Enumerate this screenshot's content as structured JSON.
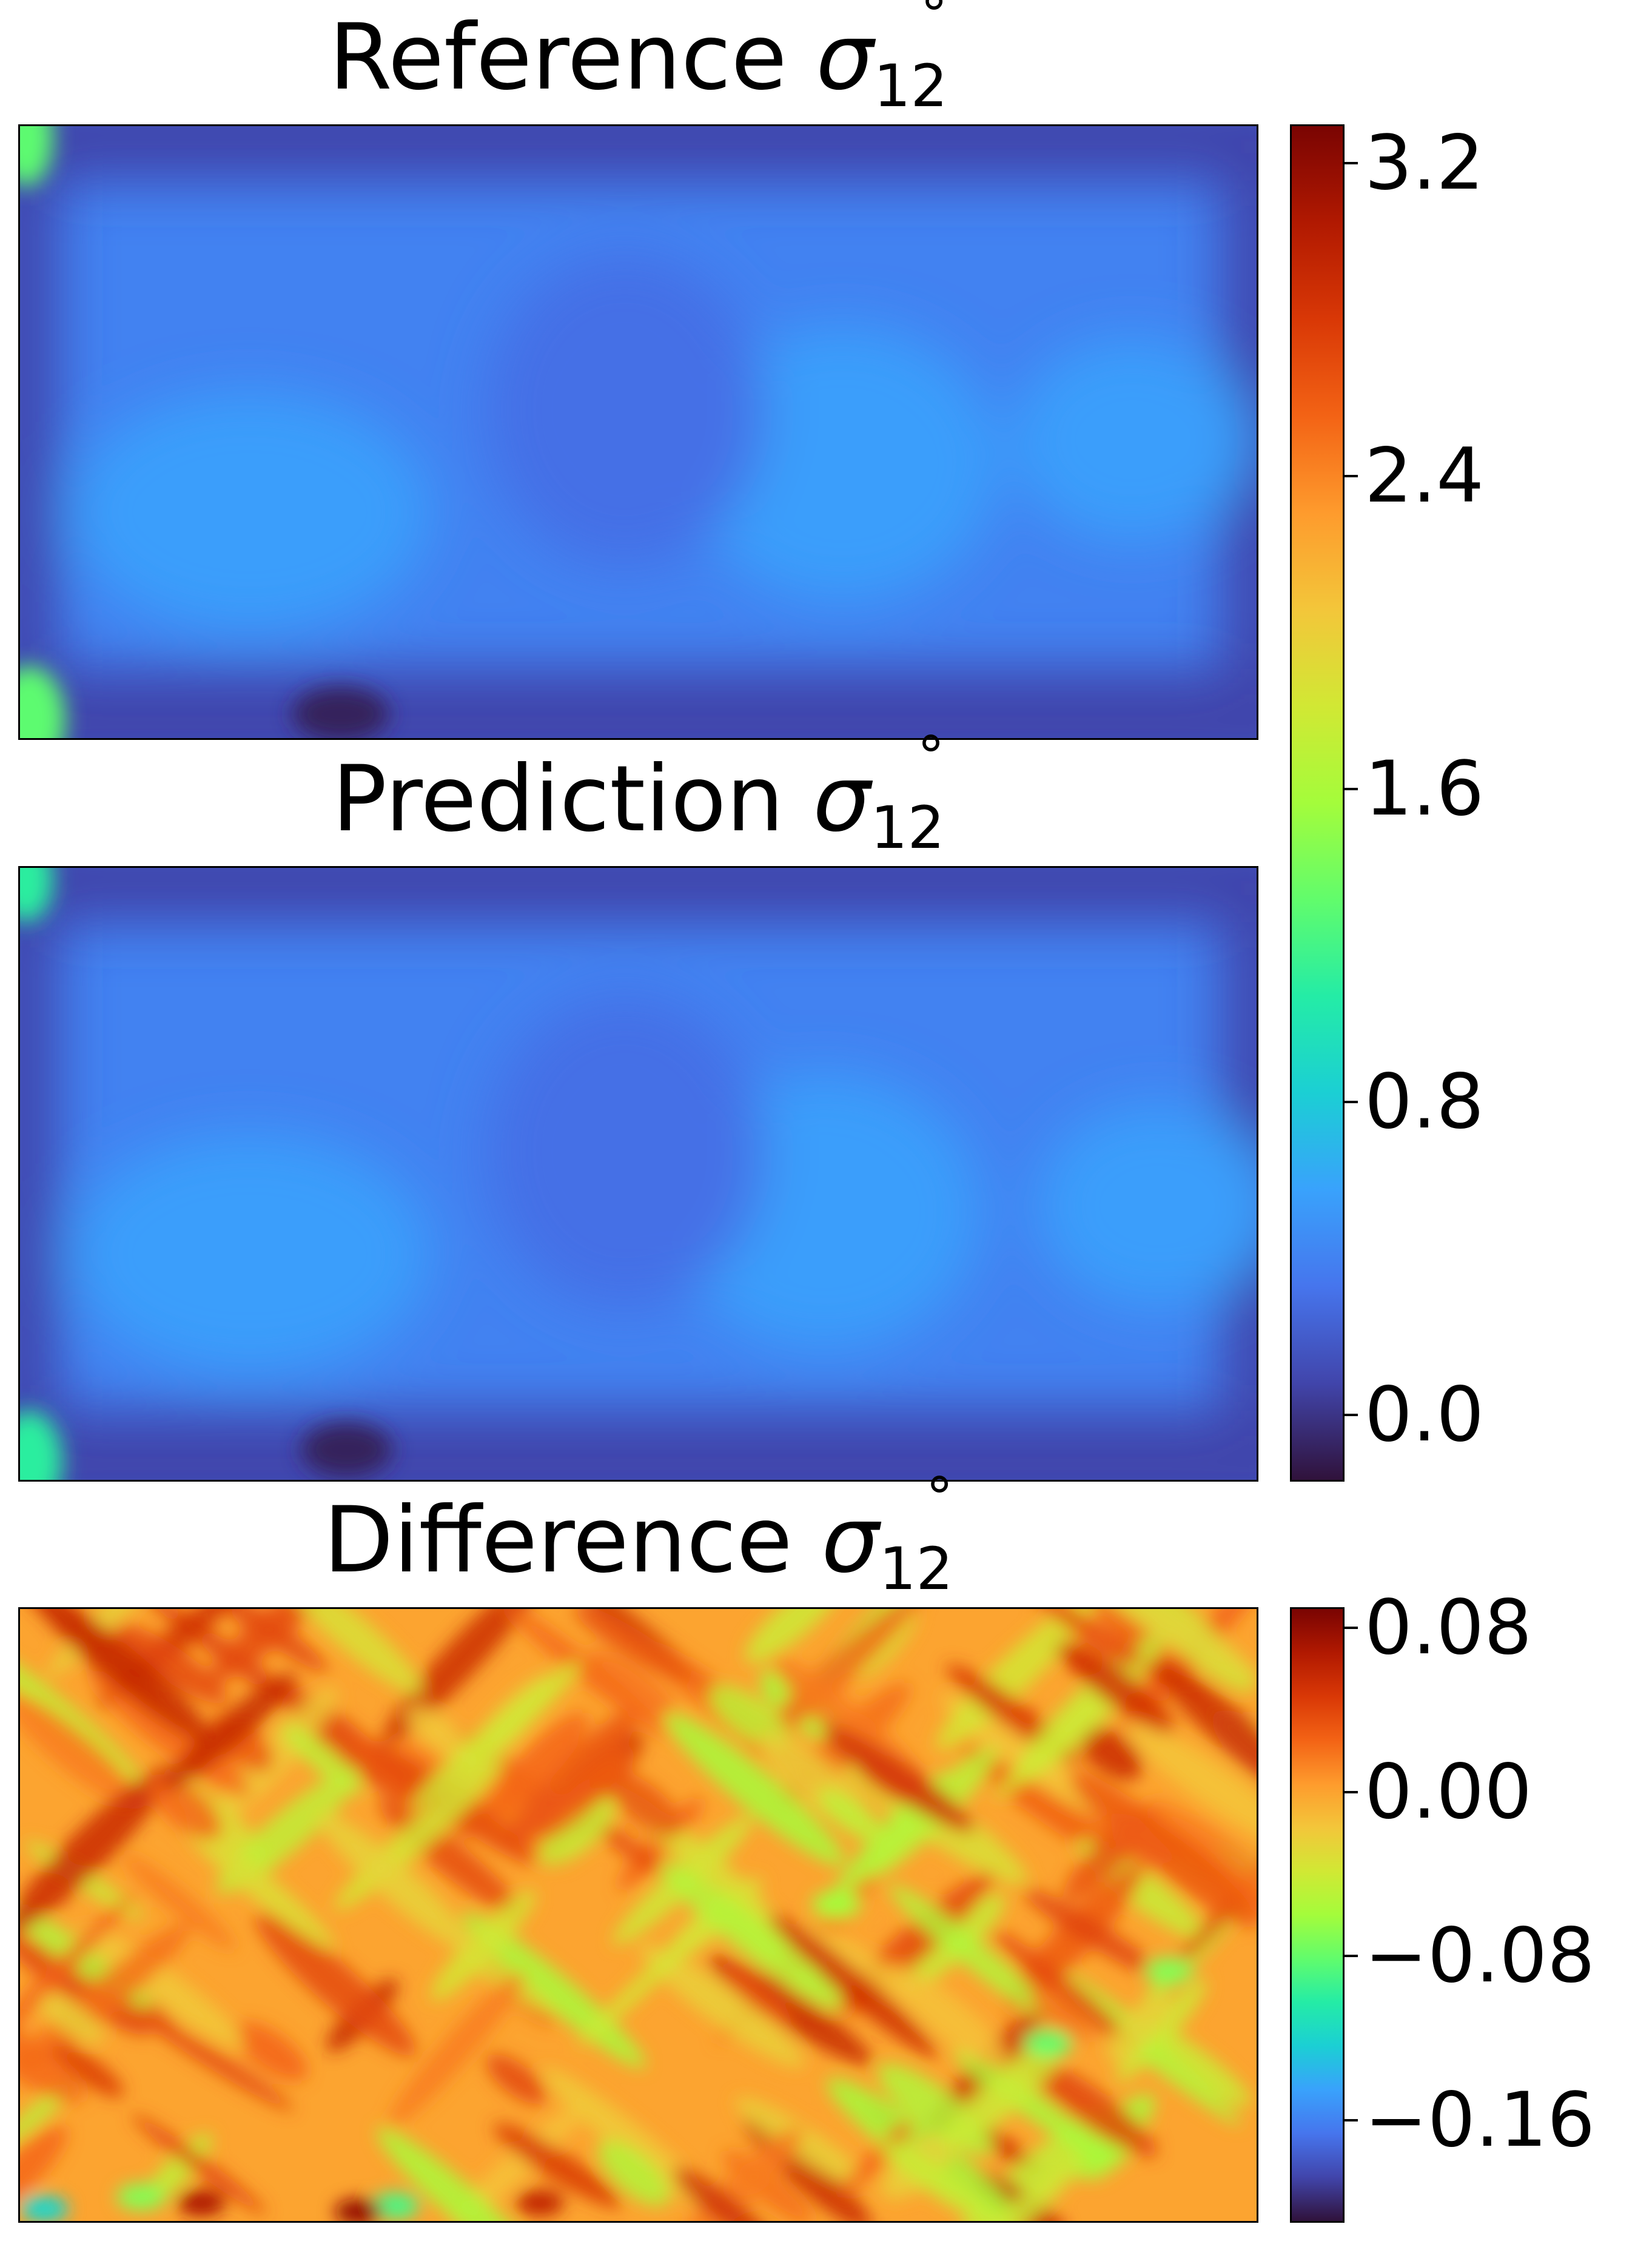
{
  "chart_data": [
    {
      "type": "heatmap",
      "title_text": "Reference ",
      "title_symbol": "σ",
      "title_superscript": "°",
      "title_subscript": "12",
      "colormap": "turbo",
      "colorbar": {
        "range": [
          -0.17,
          3.3
        ],
        "ticks": [
          "3.2",
          "2.4",
          "1.6",
          "0.8",
          "0.0"
        ],
        "tick_values": [
          3.2,
          2.4,
          1.6,
          0.8,
          0.0
        ]
      },
      "field_summary": {
        "background_value": 0.4,
        "high_spots_value": 1.3,
        "low_spots_value": -0.1
      }
    },
    {
      "type": "heatmap",
      "title_text": "Prediction ",
      "title_symbol": "σ",
      "title_superscript": "°",
      "title_subscript": "12",
      "colormap": "turbo",
      "colorbar": "shared with Reference",
      "field_summary": {
        "background_value": 0.4,
        "high_spots_value": 1.1,
        "low_spots_value": -0.1
      }
    },
    {
      "type": "heatmap",
      "title_text": "Difference ",
      "title_symbol": "σ",
      "title_superscript": "°",
      "title_subscript": "12",
      "colormap": "turbo",
      "colorbar": {
        "range": [
          -0.21,
          0.09
        ],
        "ticks": [
          "0.08",
          "0.00",
          "−0.08",
          "−0.16"
        ],
        "tick_values": [
          0.08,
          0.0,
          -0.08,
          -0.16
        ]
      },
      "field_summary": {
        "background_value": 0.0,
        "high_spots_value": 0.06,
        "low_spots_value": -0.12
      }
    }
  ],
  "colors": {
    "turbo_stops": [
      "#30123b",
      "#4145ab",
      "#4675ed",
      "#39a2fc",
      "#1bcfd4",
      "#24eca6",
      "#61fc6c",
      "#a4fc3b",
      "#d1e834",
      "#f3c63a",
      "#fe9b2d",
      "#f36315",
      "#d93806",
      "#b11901",
      "#7a0402"
    ]
  }
}
